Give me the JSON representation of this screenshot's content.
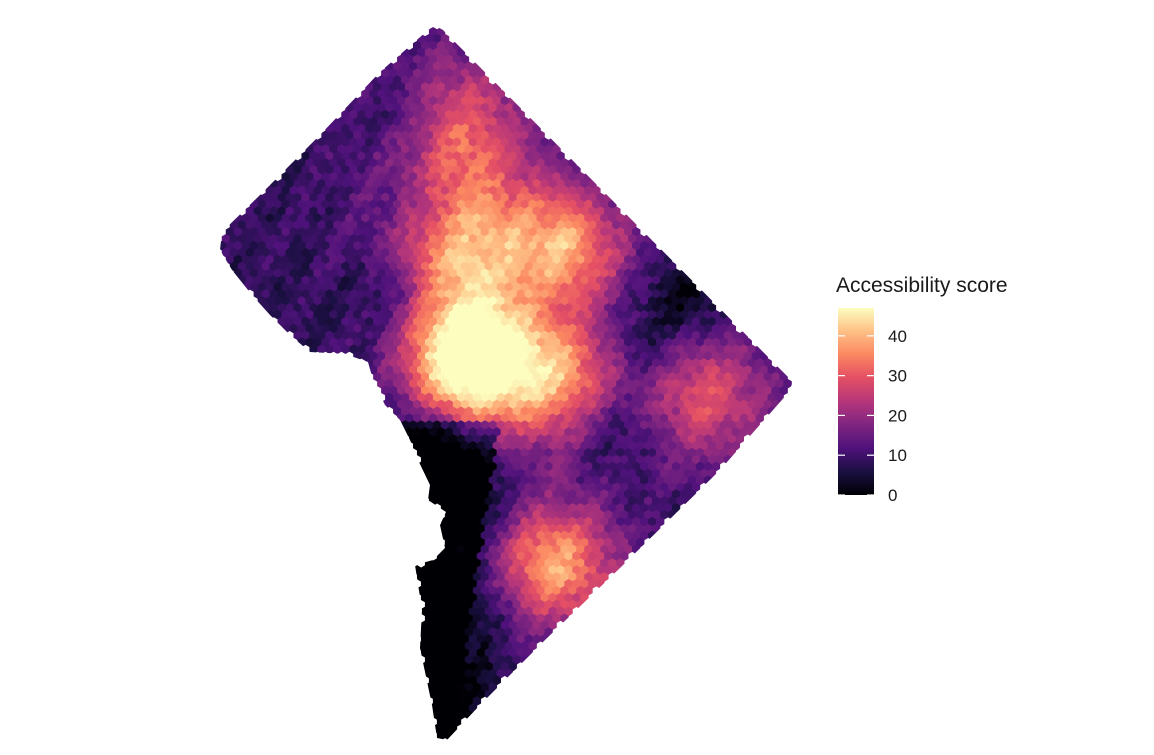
{
  "map": {
    "region_shape": "washington-dc-boundary",
    "cell_shape": "hexagon",
    "colormap": "magma",
    "value_domain": [
      0,
      47
    ],
    "hotspots": [
      {
        "name": "downtown-core",
        "peak": 46
      },
      {
        "name": "north-central-corridor",
        "peak": 30
      },
      {
        "name": "central-east",
        "peak": 28
      },
      {
        "name": "east-center",
        "peak": 26
      },
      {
        "name": "north-east",
        "peak": 22
      },
      {
        "name": "southeast-neighborhood",
        "peak": 30
      },
      {
        "name": "eastern-neighborhood",
        "peak": 20
      }
    ],
    "low_areas": [
      "rock-creek-park-corridor",
      "anacostia-river-corridor",
      "far-southwest-waterfront"
    ]
  },
  "legend": {
    "title": "Accessibility score",
    "ticks": [
      {
        "value": 0,
        "label": "0"
      },
      {
        "value": 10,
        "label": "10"
      },
      {
        "value": 20,
        "label": "20"
      },
      {
        "value": 30,
        "label": "30"
      },
      {
        "value": 40,
        "label": "40"
      }
    ],
    "stops": [
      {
        "offset": 0.0,
        "color": "#000004"
      },
      {
        "offset": 0.13,
        "color": "#1c1044"
      },
      {
        "offset": 0.25,
        "color": "#4f127b"
      },
      {
        "offset": 0.38,
        "color": "#812581"
      },
      {
        "offset": 0.5,
        "color": "#b5367a"
      },
      {
        "offset": 0.63,
        "color": "#e55064"
      },
      {
        "offset": 0.75,
        "color": "#fb8761"
      },
      {
        "offset": 0.88,
        "color": "#fec287"
      },
      {
        "offset": 1.0,
        "color": "#fcfdbf"
      }
    ]
  }
}
